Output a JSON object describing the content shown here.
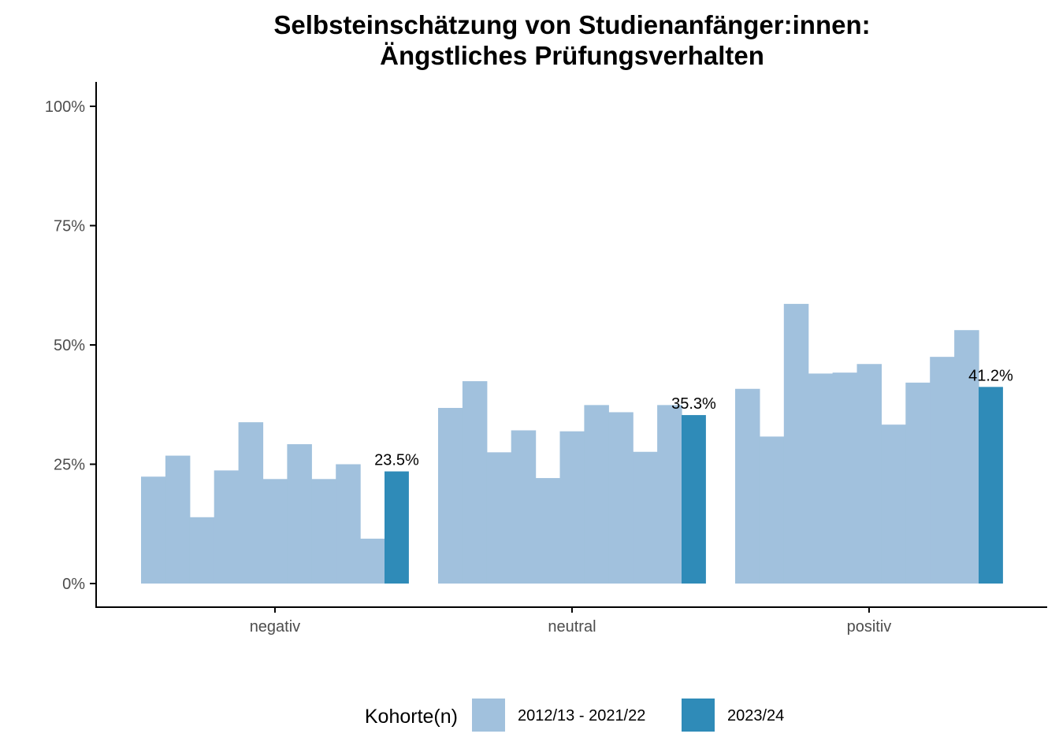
{
  "chart_data": {
    "type": "bar",
    "title": "Selbsteinschätzung von Studienanfänger:innen:",
    "subtitle": "Ängstliches Prüfungsverhalten",
    "xlabel": "",
    "ylabel": "",
    "ylim": [
      0,
      100
    ],
    "yticks": [
      "0%",
      "25%",
      "50%",
      "75%",
      "100%"
    ],
    "ytick_values": [
      0,
      25,
      50,
      75,
      100
    ],
    "categories": [
      "negativ",
      "neutral",
      "positiv"
    ],
    "legend_title": "Kohorte(n)",
    "legend_position": "bottom",
    "grid": false,
    "series": [
      {
        "name": "2012/13 - 2021/22",
        "color": "#a1c1dd",
        "values": [
          [
            22.4,
            26.8,
            13.9,
            23.7,
            33.8,
            21.9,
            29.2,
            21.9,
            25.0,
            9.4
          ],
          [
            36.8,
            42.4,
            27.5,
            32.1,
            22.1,
            31.9,
            37.4,
            35.9,
            27.6,
            37.4
          ],
          [
            40.8,
            30.8,
            58.6,
            44.0,
            44.2,
            46.0,
            33.3,
            42.1,
            47.5,
            53.1
          ]
        ]
      },
      {
        "name": "2023/24",
        "color": "#2f8bb8",
        "values": [
          23.5,
          35.3,
          41.2
        ],
        "labels": [
          "23.5%",
          "35.3%",
          "41.2%"
        ]
      }
    ]
  }
}
